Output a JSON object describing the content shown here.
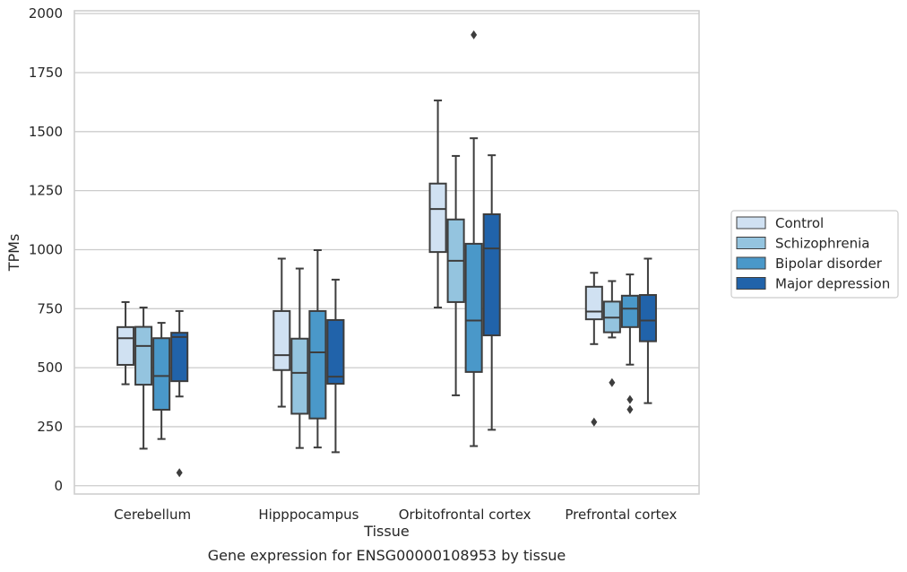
{
  "chart_data": {
    "type": "box",
    "title": "Gene expression for ENSG00000108953 by tissue",
    "xlabel": "Tissue",
    "ylabel": "TPMs",
    "ylim": [
      -35,
      2012
    ],
    "yticks": [
      0,
      250,
      500,
      750,
      1000,
      1250,
      1500,
      1750,
      2000
    ],
    "grid": true,
    "legend_position": "right",
    "categories": [
      "Cerebellum",
      "Hipppocampus",
      "Orbitofrontal cortex",
      "Prefrontal cortex"
    ],
    "series": [
      {
        "name": "Control",
        "color": "#d0e1f2",
        "boxes": [
          {
            "whisker_low": 430,
            "q1": 512,
            "median": 625,
            "q3": 672,
            "whisker_high": 778,
            "outliers": []
          },
          {
            "whisker_low": 335,
            "q1": 490,
            "median": 553,
            "q3": 740,
            "whisker_high": 962,
            "outliers": []
          },
          {
            "whisker_low": 755,
            "q1": 990,
            "median": 1172,
            "q3": 1280,
            "whisker_high": 1632,
            "outliers": []
          },
          {
            "whisker_low": 600,
            "q1": 705,
            "median": 738,
            "q3": 843,
            "whisker_high": 902,
            "outliers": [
              270
            ]
          }
        ]
      },
      {
        "name": "Schizophrenia",
        "color": "#94c4df",
        "boxes": [
          {
            "whisker_low": 157,
            "q1": 428,
            "median": 592,
            "q3": 673,
            "whisker_high": 755,
            "outliers": []
          },
          {
            "whisker_low": 160,
            "q1": 305,
            "median": 478,
            "q3": 623,
            "whisker_high": 920,
            "outliers": []
          },
          {
            "whisker_low": 383,
            "q1": 778,
            "median": 953,
            "q3": 1128,
            "whisker_high": 1397,
            "outliers": []
          },
          {
            "whisker_low": 628,
            "q1": 650,
            "median": 712,
            "q3": 780,
            "whisker_high": 867,
            "outliers": [
              437
            ]
          }
        ]
      },
      {
        "name": "Bipolar disorder",
        "color": "#4a98c9",
        "boxes": [
          {
            "whisker_low": 198,
            "q1": 322,
            "median": 465,
            "q3": 625,
            "whisker_high": 690,
            "outliers": []
          },
          {
            "whisker_low": 162,
            "q1": 285,
            "median": 565,
            "q3": 740,
            "whisker_high": 998,
            "outliers": []
          },
          {
            "whisker_low": 168,
            "q1": 482,
            "median": 700,
            "q3": 1025,
            "whisker_high": 1472,
            "outliers": [
              1910
            ]
          },
          {
            "whisker_low": 513,
            "q1": 672,
            "median": 750,
            "q3": 805,
            "whisker_high": 895,
            "outliers": [
              365,
              323
            ]
          }
        ]
      },
      {
        "name": "Major depression",
        "color": "#2163aa",
        "boxes": [
          {
            "whisker_low": 378,
            "q1": 443,
            "median": 630,
            "q3": 648,
            "whisker_high": 740,
            "outliers": [
              55
            ]
          },
          {
            "whisker_low": 142,
            "q1": 432,
            "median": 462,
            "q3": 702,
            "whisker_high": 873,
            "outliers": []
          },
          {
            "whisker_low": 237,
            "q1": 637,
            "median": 1005,
            "q3": 1150,
            "whisker_high": 1400,
            "outliers": []
          },
          {
            "whisker_low": 350,
            "q1": 612,
            "median": 700,
            "q3": 808,
            "whisker_high": 962,
            "outliers": []
          }
        ]
      }
    ]
  }
}
